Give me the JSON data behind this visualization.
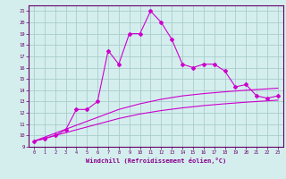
{
  "xlabel": "Windchill (Refroidissement éolien,°C)",
  "bg_color": "#d4eeee",
  "grid_color": "#aacccc",
  "line_color": "#cc00cc",
  "x_values": [
    0,
    1,
    2,
    3,
    4,
    5,
    6,
    7,
    8,
    9,
    10,
    11,
    12,
    13,
    14,
    15,
    16,
    17,
    18,
    19,
    20,
    21,
    22,
    23
  ],
  "y_zigzag": [
    9.5,
    9.7,
    10.0,
    10.5,
    12.3,
    12.3,
    13.0,
    17.5,
    16.3,
    19.0,
    19.0,
    21.0,
    20.0,
    18.5,
    16.3,
    16.0,
    16.3,
    16.3,
    15.7,
    14.3,
    14.5,
    13.5,
    13.3,
    13.5
  ],
  "y_line1": [
    9.5,
    9.85,
    10.2,
    10.55,
    10.9,
    11.25,
    11.6,
    11.95,
    12.3,
    12.55,
    12.8,
    13.0,
    13.2,
    13.35,
    13.5,
    13.6,
    13.7,
    13.78,
    13.86,
    13.93,
    14.0,
    14.06,
    14.12,
    14.18
  ],
  "y_line2": [
    9.5,
    9.75,
    10.0,
    10.25,
    10.5,
    10.75,
    11.0,
    11.25,
    11.5,
    11.7,
    11.9,
    12.05,
    12.2,
    12.32,
    12.44,
    12.54,
    12.64,
    12.72,
    12.8,
    12.87,
    12.94,
    13.0,
    13.06,
    13.12
  ],
  "ylim": [
    9,
    21.5
  ],
  "xlim": [
    -0.5,
    23.5
  ],
  "yticks": [
    9,
    10,
    11,
    12,
    13,
    14,
    15,
    16,
    17,
    18,
    19,
    20,
    21
  ],
  "xticks": [
    0,
    1,
    2,
    3,
    4,
    5,
    6,
    7,
    8,
    9,
    10,
    11,
    12,
    13,
    14,
    15,
    16,
    17,
    18,
    19,
    20,
    21,
    22,
    23
  ]
}
